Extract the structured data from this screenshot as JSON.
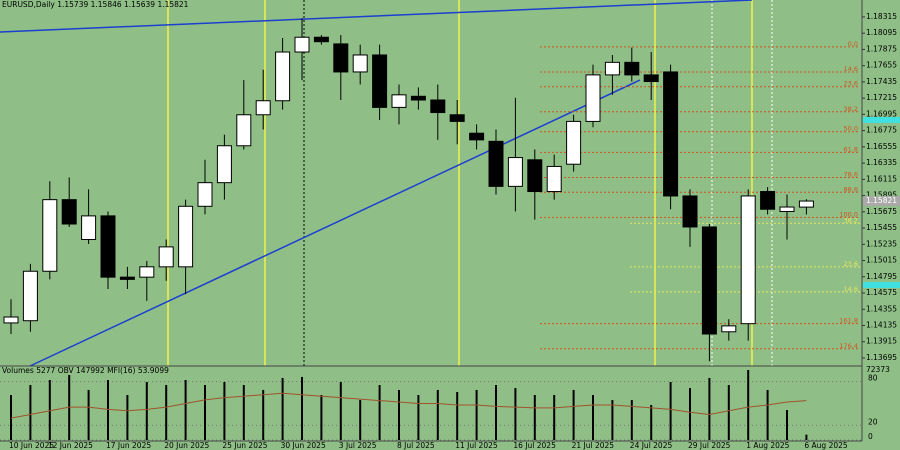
{
  "chart_data": [
    {
      "type": "candlestick",
      "title": "EURUSD,Daily",
      "categories": [
        "10 Jun 2025",
        null,
        "12 Jun 2025",
        null,
        null,
        "17 Jun 2025",
        null,
        null,
        "20 Jun 2025",
        null,
        null,
        "25 Jun 2025",
        null,
        null,
        "30 Jun 2025",
        null,
        null,
        "3 Jul 2025",
        null,
        null,
        "8 Jul 2025",
        null,
        null,
        "11 Jul 2025",
        null,
        null,
        "16 Jul 2025",
        null,
        null,
        "21 Jul 2025",
        null,
        null,
        "24 Jul 2025",
        null,
        null,
        "29 Jul 2025",
        null,
        null,
        "1 Aug 2025",
        null,
        null,
        "6 Aug 2025"
      ],
      "open": [
        1.1417,
        1.142,
        1.1487,
        1.1584,
        1.153,
        1.1562,
        1.1479,
        1.1479,
        1.1493,
        1.1493,
        1.1575,
        1.1607,
        1.1657,
        1.1699,
        1.1718,
        1.1784,
        1.1804,
        1.1795,
        1.1757,
        1.178,
        1.1709,
        1.1724,
        1.1719,
        1.1699,
        1.1674,
        1.1663,
        1.1602,
        1.1638,
        1.1595,
        1.1632,
        1.169,
        1.1753,
        1.177,
        1.1753,
        1.1757,
        1.1589,
        1.1547,
        1.1405,
        1.1416,
        1.1595,
        1.1568,
        1.15739
      ],
      "high": [
        1.1449,
        1.1497,
        1.1609,
        1.1614,
        1.1598,
        1.1568,
        1.1493,
        1.1501,
        1.153,
        1.1584,
        1.1638,
        1.1672,
        1.1746,
        1.176,
        1.1803,
        1.183,
        1.1807,
        1.1807,
        1.1794,
        1.1794,
        1.174,
        1.1736,
        1.174,
        1.1719,
        1.1686,
        1.1679,
        1.1722,
        1.1652,
        1.1645,
        1.1699,
        1.1767,
        1.178,
        1.179,
        1.1784,
        1.1767,
        1.1598,
        1.1551,
        1.1422,
        1.1598,
        1.1601,
        1.1591,
        1.15846
      ],
      "low": [
        1.1402,
        1.1405,
        1.1476,
        1.1547,
        1.1524,
        1.1463,
        1.1463,
        1.1447,
        1.1474,
        1.1456,
        1.1564,
        1.1584,
        1.1652,
        1.1679,
        1.1706,
        1.1746,
        1.1794,
        1.1719,
        1.174,
        1.1692,
        1.1686,
        1.1706,
        1.1665,
        1.1659,
        1.1652,
        1.1591,
        1.1568,
        1.1557,
        1.1584,
        1.1622,
        1.1682,
        1.1726,
        1.1744,
        1.1719,
        1.1571,
        1.152,
        1.1365,
        1.1393,
        1.1393,
        1.1564,
        1.153,
        1.15639
      ],
      "close": [
        1.1425,
        1.1487,
        1.1584,
        1.1551,
        1.1562,
        1.1479,
        1.1476,
        1.1493,
        1.152,
        1.1575,
        1.1607,
        1.1657,
        1.1699,
        1.1718,
        1.1784,
        1.1804,
        1.1798,
        1.1757,
        1.178,
        1.1709,
        1.1726,
        1.1719,
        1.1702,
        1.169,
        1.1665,
        1.1602,
        1.1641,
        1.1595,
        1.1629,
        1.169,
        1.1753,
        1.177,
        1.1753,
        1.1744,
        1.1589,
        1.1547,
        1.1402,
        1.1413,
        1.1589,
        1.1571,
        1.1574,
        1.15821
      ],
      "ylim": [
        1.136,
        1.185
      ],
      "yticks": [
        1.18315,
        1.18095,
        1.17875,
        1.17655,
        1.17435,
        1.17215,
        1.16995,
        1.16775,
        1.16555,
        1.16335,
        1.16115,
        1.15895,
        1.15675,
        1.15455,
        1.15235,
        1.15015,
        1.14795,
        1.14575,
        1.14355,
        1.14135,
        1.13915,
        1.13695
      ],
      "fib_color": "#d2541e",
      "fib_levels": [
        {
          "value": 1.1791,
          "label": "0.0"
        },
        {
          "value": 1.1757,
          "label": "14.6"
        },
        {
          "value": 1.1737,
          "label": "23.6"
        },
        {
          "value": 1.1703,
          "label": "38.2"
        },
        {
          "value": 1.1676,
          "label": "50.0"
        },
        {
          "value": 1.1648,
          "label": "61.8"
        },
        {
          "value": 1.1614,
          "label": "78.6"
        },
        {
          "value": 1.1594,
          "label": "88.6"
        },
        {
          "value": 1.156,
          "label": "100.0"
        },
        {
          "value": 1.1416,
          "label": "161.8"
        },
        {
          "value": 1.1382,
          "label": "176.4"
        }
      ],
      "fib_color_2": "#e6e65a",
      "fib_levels_2": [
        {
          "value": 1.1552,
          "label": "38.2"
        },
        {
          "value": 1.1493,
          "label": "23.6"
        },
        {
          "value": 1.1459,
          "label": "14.6"
        }
      ]
    },
    {
      "type": "bar",
      "title": "Volumes",
      "values": [
        44600,
        54500,
        59500,
        64400,
        49600,
        59500,
        44600,
        57500,
        54500,
        59500,
        54500,
        57500,
        54500,
        49600,
        61500,
        62500,
        44600,
        57500,
        39600,
        54500,
        49600,
        44600,
        49600,
        47600,
        49600,
        54500,
        51500,
        44600,
        44600,
        49600,
        44600,
        39600,
        39600,
        34700,
        57500,
        51500,
        61500,
        54500,
        69400,
        49600,
        29700,
        5277
      ],
      "color": "#000000",
      "ylim": [
        0,
        72373
      ],
      "yticks": [
        72373
      ],
      "obv_label": "OBV",
      "obv": 147992,
      "y2lim": [
        0,
        100
      ],
      "y2ticks": [
        0,
        20,
        80
      ],
      "series": [
        {
          "name": "MFI(16)",
          "color": "#a0522d",
          "axis": "y2",
          "values": [
            30,
            35,
            40,
            45,
            45,
            42,
            40,
            42,
            45,
            50,
            55,
            58,
            60,
            62,
            64,
            62,
            60,
            58,
            56,
            54,
            52,
            50,
            50,
            48,
            48,
            46,
            45,
            44,
            44,
            46,
            48,
            48,
            46,
            44,
            42,
            38,
            35,
            40,
            45,
            48,
            52,
            53.9099
          ]
        }
      ]
    }
  ]
}
